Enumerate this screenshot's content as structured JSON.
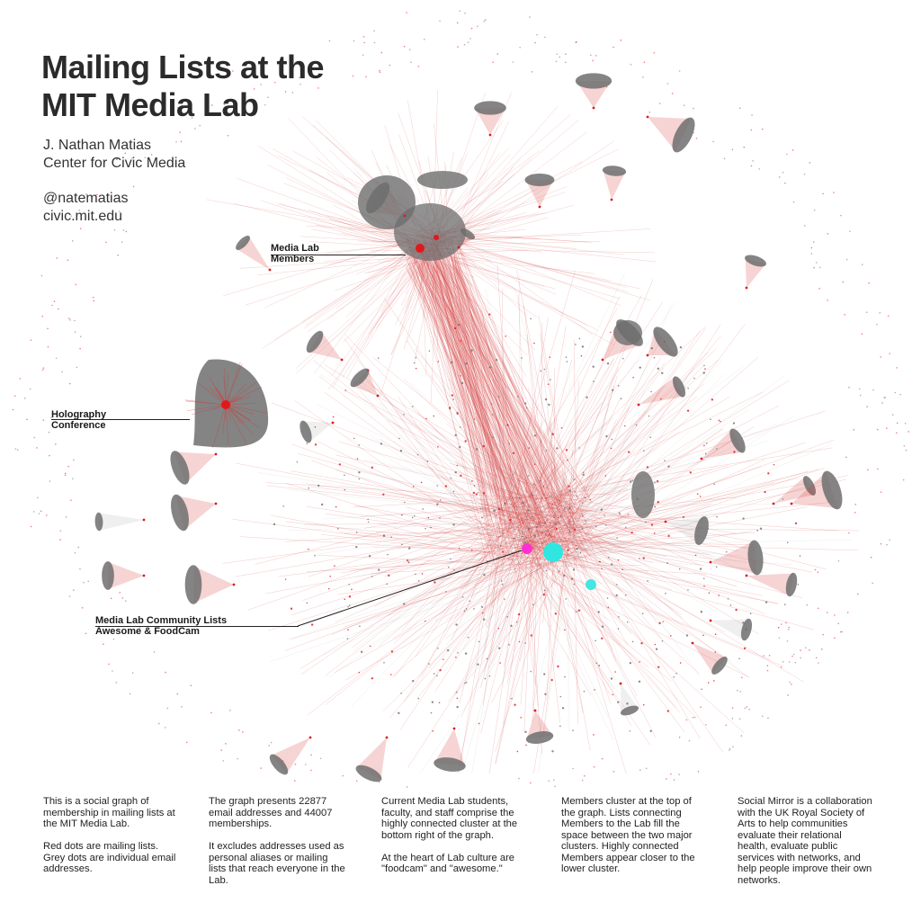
{
  "title": {
    "line1": "Mailing Lists at the",
    "line2": "MIT Media Lab"
  },
  "author": {
    "name": "J. Nathan Matias",
    "org": "Center for Civic Media"
  },
  "contact": {
    "handle": "@natematias",
    "website": "civic.mit.edu"
  },
  "callouts": {
    "members": {
      "line1": "Media Lab",
      "line2": "Members"
    },
    "holography": {
      "line1": "Holography",
      "line2": "Conference"
    },
    "community": {
      "line1": "Media Lab Community Lists",
      "line2": "Awesome & FoodCam"
    }
  },
  "descriptions": [
    {
      "p1": "This is a social graph of membership in mailing lists at the MIT Media Lab.",
      "p2": "Red dots are mailing lists. Grey dots are individual email addresses."
    },
    {
      "p1": "The graph presents 22877 email addresses and 44007 memberships.",
      "p2": "It excludes  addresses used as personal aliases or mailing lists that reach everyone in the Lab."
    },
    {
      "p1": "Current Media Lab students, faculty, and staff comprise the highly connected cluster at the bottom right of the graph.",
      "p2": "At the heart of Lab culture are \"foodcam\" and \"awesome.\""
    },
    {
      "p1": "Members cluster at the top of the graph. Lists connecting Members to the Lab fill the space between the two major clusters. Highly connected Members appear closer to the lower cluster.",
      "p2": ""
    },
    {
      "p1": "Social Mirror is a collaboration with the UK Royal Society of Arts to help communities evaluate their relational health, evaluate public services with networks, and help people improve their own networks.",
      "p2": ""
    }
  ],
  "colors": {
    "background": "#ffffff",
    "mailing_list": "#e0181b",
    "email_address": "#6e6e6e",
    "edge": "#d43a3a",
    "edge_grey": "#b8b8b8",
    "awesome": "#ff2fd0",
    "foodcam": "#2fe6e0",
    "text": "#222222"
  }
}
